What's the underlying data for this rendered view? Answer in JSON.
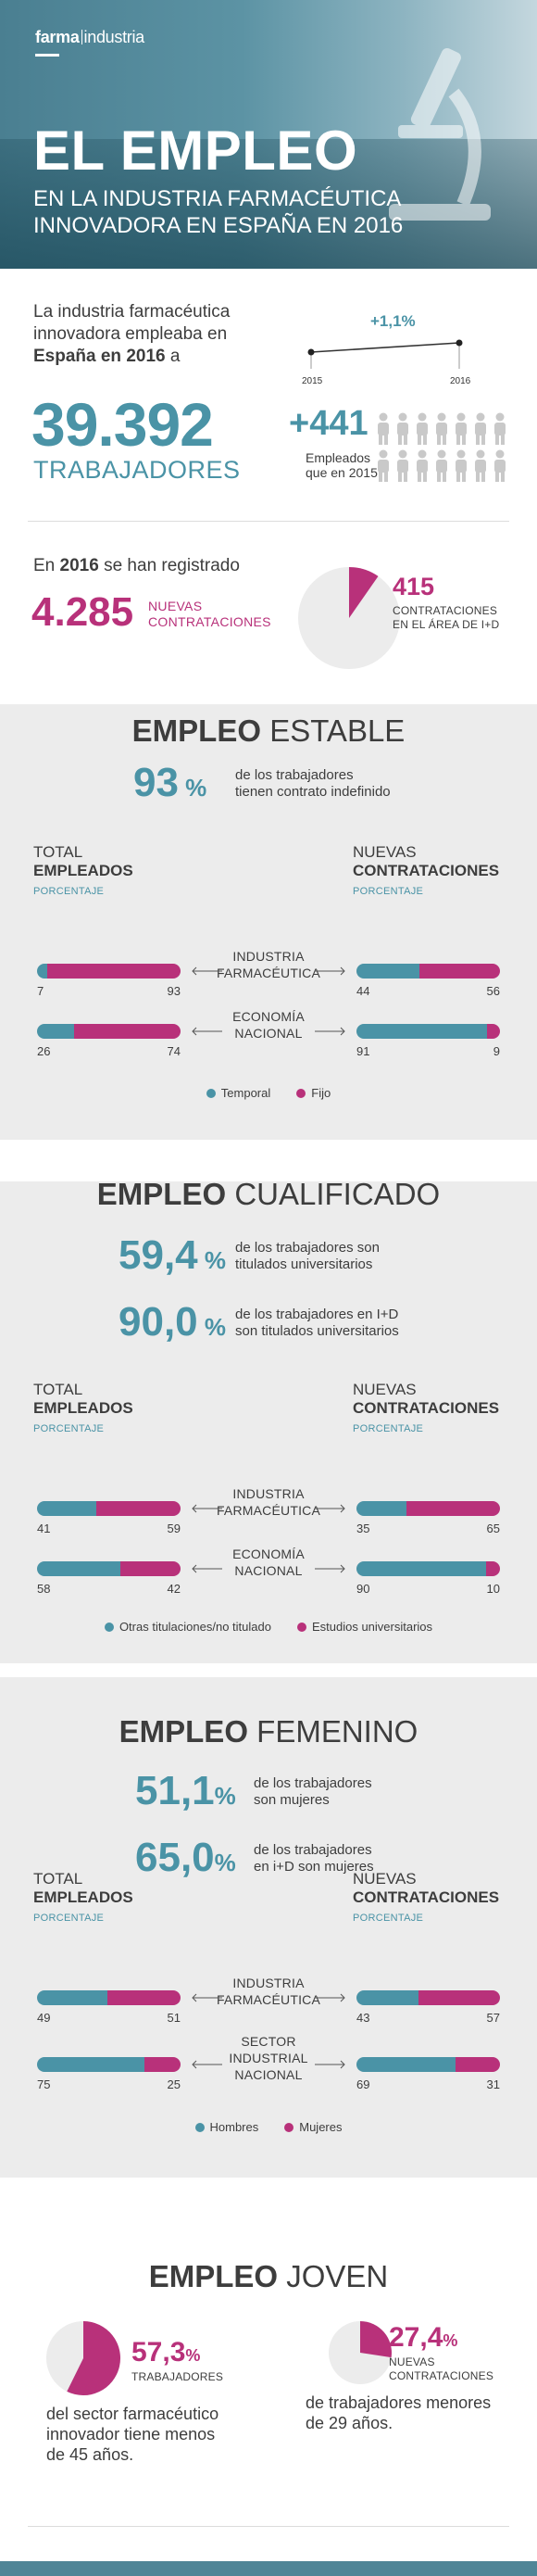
{
  "header": {
    "logo_bold": "farma",
    "logo_rest": "industria",
    "title": "EL EMPLEO",
    "subtitle_line1": "EN LA INDUSTRIA FARMACÉUTICA",
    "subtitle_line2": "INNOVADORA EN ESPAÑA EN 2016"
  },
  "intro": {
    "text_1": "La industria farmacéutica innovadora empleaba en ",
    "text_bold": "España en 2016",
    "text_2": " a",
    "workers_number": "39.392",
    "workers_label": "TRABAJADORES",
    "trend_change": "+1,1%",
    "trend_year_start": "2015",
    "trend_year_end": "2016",
    "increase_number": "+441",
    "increase_label_1": "Empleados",
    "increase_label_2": "que en 2015"
  },
  "hiring": {
    "text_1": "En ",
    "text_bold": "2016",
    "text_2": " se han registrado",
    "number": "4.285",
    "label_1": "NUEVAS",
    "label_2": "CONTRATACIONES",
    "rd_number": "415",
    "rd_label_1": "CONTRATACIONES",
    "rd_label_2": "EN EL ÁREA DE I+D",
    "rd_fraction": 0.097
  },
  "colors": {
    "teal": "#4a93a6",
    "magenta": "#b8317a",
    "section_bg": "#ececec"
  },
  "col_headers": {
    "left_1": "TOTAL",
    "left_2": "EMPLEADOS",
    "left_sub": "PORCENTAJE",
    "right_1": "NUEVAS",
    "right_2": "CONTRATACIONES",
    "right_sub": "PORCENTAJE"
  },
  "sections": [
    {
      "title_bold": "EMPLEO",
      "title_rest": " ESTABLE",
      "stats": [
        {
          "num": "93",
          "pct": " %",
          "desc_1": "de los trabajadores",
          "desc_2": "tienen contrato indefinido"
        }
      ],
      "rows": [
        {
          "label_1": "INDUSTRIA",
          "label_2": "FARMACÉUTICA",
          "left": [
            7,
            93
          ],
          "right": [
            44,
            56
          ]
        },
        {
          "label_1": "ECONOMÍA",
          "label_2": "NACIONAL",
          "left": [
            26,
            74
          ],
          "right": [
            91,
            9
          ]
        }
      ],
      "legend_a": "Temporal",
      "legend_b": "Fijo"
    },
    {
      "title_bold": "EMPLEO",
      "title_rest": " CUALIFICADO",
      "stats": [
        {
          "num": "59,4",
          "pct": " %",
          "desc_1": "de los trabajadores son",
          "desc_2": "titulados universitarios"
        },
        {
          "num": "90,0",
          "pct": " %",
          "desc_1": "de los trabajadores en I+D",
          "desc_2": "son titulados universitarios"
        }
      ],
      "rows": [
        {
          "label_1": "INDUSTRIA",
          "label_2": "FARMACÉUTICA",
          "left": [
            41,
            59
          ],
          "right": [
            35,
            65
          ]
        },
        {
          "label_1": "ECONOMÍA",
          "label_2": "NACIONAL",
          "left": [
            58,
            42
          ],
          "right": [
            90,
            10
          ]
        }
      ],
      "legend_a": "Otras titulaciones/no titulado",
      "legend_b": "Estudios universitarios"
    },
    {
      "title_bold": "EMPLEO",
      "title_rest": " FEMENINO",
      "stats": [
        {
          "num": "51,1",
          "pct": "%",
          "desc_1": "de los trabajadores",
          "desc_2": "son mujeres"
        },
        {
          "num": "65,0",
          "pct": "%",
          "desc_1": "de los trabajadores",
          "desc_2": "en  i+D son mujeres"
        }
      ],
      "rows": [
        {
          "label_1": "INDUSTRIA",
          "label_2": "FARMACÉUTICA",
          "left": [
            49,
            51
          ],
          "right": [
            43,
            57
          ]
        },
        {
          "label_1": "SECTOR",
          "label_2": "INDUSTRIAL",
          "label_3": "NACIONAL",
          "left": [
            75,
            25
          ],
          "right": [
            69,
            31
          ]
        }
      ],
      "legend_a": "Hombres",
      "legend_b": "Mujeres"
    }
  ],
  "joven": {
    "title_bold": "EMPLEO",
    "title_rest": " JOVEN",
    "stat1_num": "57,3",
    "stat1_pct": "%",
    "stat1_label": "TRABAJADORES",
    "stat1_fraction": 0.573,
    "stat1_desc_1": "del sector farmacéutico",
    "stat1_desc_2": "innovador tiene menos",
    "stat1_desc_3": "de 45 años.",
    "stat2_num": "27,4",
    "stat2_pct": "%",
    "stat2_label_1": "NUEVAS",
    "stat2_label_2": "CONTRATACIONES",
    "stat2_fraction": 0.274,
    "stat2_desc_1": "de trabajadores menores",
    "stat2_desc_2": "de 29 años."
  }
}
